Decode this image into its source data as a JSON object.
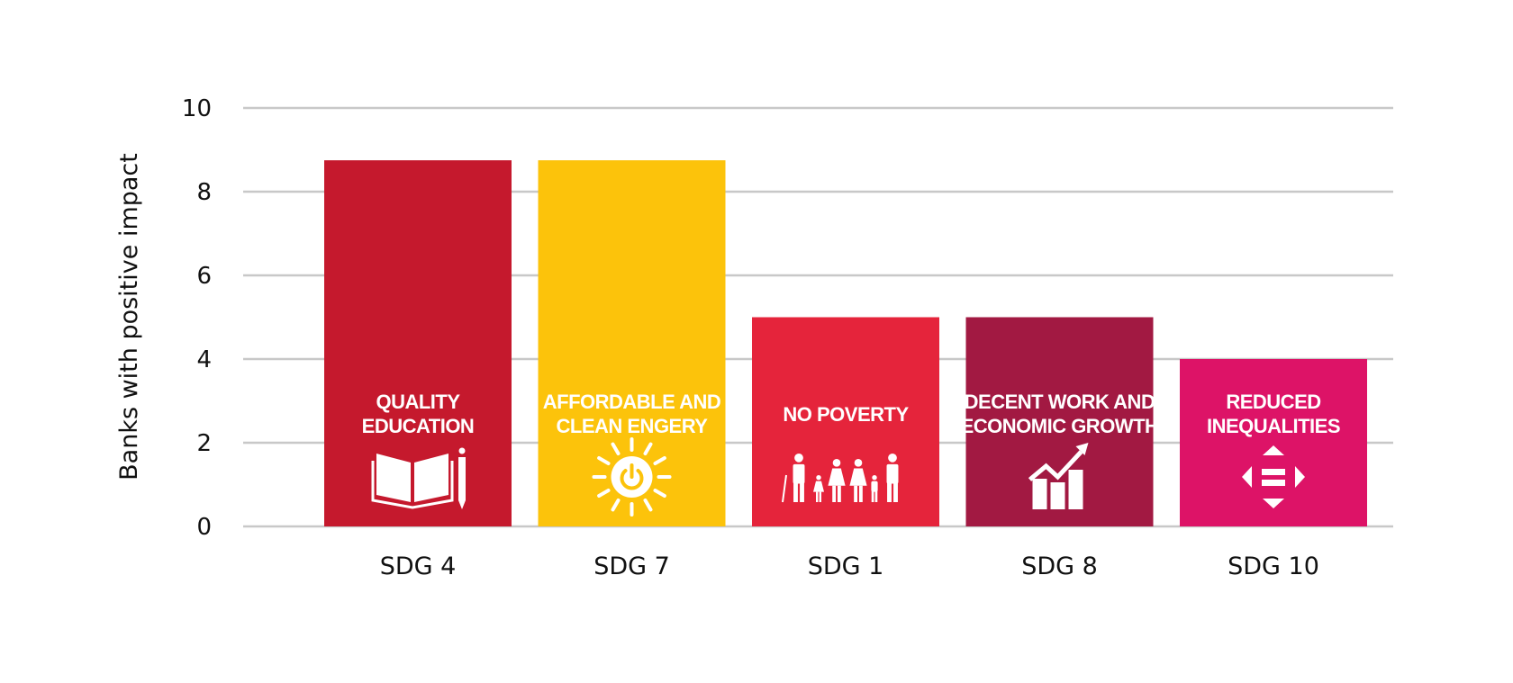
{
  "chart_data": {
    "type": "bar",
    "title": "",
    "xlabel": "",
    "ylabel": "Banks with positive impact",
    "ylim": [
      0,
      10
    ],
    "yticks": [
      0,
      2,
      4,
      6,
      8,
      10
    ],
    "grid": true,
    "legend": "none",
    "categories": [
      "SDG 4",
      "SDG 7",
      "SDG 1",
      "SDG 8",
      "SDG 10"
    ],
    "values": [
      8.75,
      8.75,
      5,
      5,
      4
    ],
    "bars": [
      {
        "category": "SDG 4",
        "value": 8.75,
        "label_lines": [
          "QUALITY",
          "EDUCATION"
        ],
        "color": "#C5192D",
        "icon": "book-pencil-icon"
      },
      {
        "category": "SDG 7",
        "value": 8.75,
        "label_lines": [
          "AFFORDABLE AND",
          "CLEAN ENGERY"
        ],
        "color": "#FCC30B",
        "icon": "sun-power-icon"
      },
      {
        "category": "SDG 1",
        "value": 5,
        "label_lines": [
          "NO POVERTY"
        ],
        "color": "#E5243B",
        "icon": "family-icon"
      },
      {
        "category": "SDG 8",
        "value": 5,
        "label_lines": [
          "DECENT WORK AND",
          "ECONOMIC GROWTH"
        ],
        "color": "#A21942",
        "icon": "growth-chart-icon"
      },
      {
        "category": "SDG 10",
        "value": 4,
        "label_lines": [
          "REDUCED",
          "INEQUALITIES"
        ],
        "color": "#DD1367",
        "icon": "inequality-arrows-icon"
      }
    ]
  }
}
